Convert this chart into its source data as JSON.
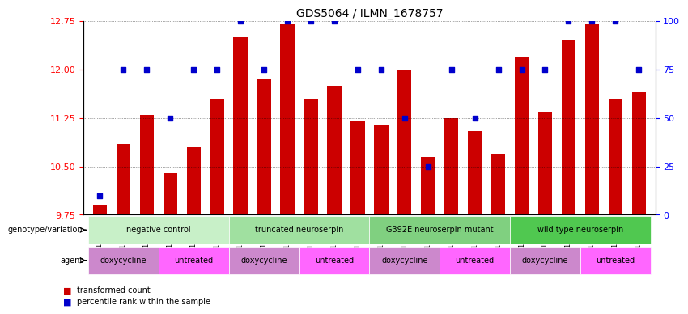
{
  "title": "GDS5064 / ILMN_1678757",
  "samples": [
    "GSM1126821",
    "GSM1126823",
    "GSM1126825",
    "GSM1126822",
    "GSM1126824",
    "GSM1126826",
    "GSM1126827",
    "GSM1126829",
    "GSM1126831",
    "GSM1126828",
    "GSM1126830",
    "GSM1126832",
    "GSM1126834",
    "GSM1126836",
    "GSM1126838",
    "GSM1126833",
    "GSM1126835",
    "GSM1126837",
    "GSM1126840",
    "GSM1126842",
    "GSM1126844",
    "GSM1126839",
    "GSM1126841",
    "GSM1126843"
  ],
  "bar_values": [
    9.9,
    10.85,
    11.3,
    10.4,
    10.8,
    11.55,
    12.5,
    11.85,
    12.7,
    11.55,
    11.75,
    11.2,
    11.15,
    12.0,
    10.65,
    11.25,
    11.05,
    10.7,
    12.2,
    11.35,
    12.45,
    12.7,
    11.55,
    11.65
  ],
  "percentile_values": [
    10,
    75,
    75,
    50,
    75,
    75,
    100,
    75,
    100,
    100,
    100,
    75,
    75,
    50,
    25,
    75,
    50,
    75,
    75,
    75,
    100,
    100,
    100,
    75
  ],
  "ylim_left": [
    9.75,
    12.75
  ],
  "ylim_right": [
    0,
    100
  ],
  "yticks_left": [
    9.75,
    10.5,
    11.25,
    12.0,
    12.75
  ],
  "yticks_right": [
    0,
    25,
    50,
    75,
    100
  ],
  "bar_color": "#cc0000",
  "dot_color": "#0000cc",
  "genotype_groups": [
    {
      "label": "negative control",
      "start": 0,
      "end": 6,
      "color": "#aaffaa"
    },
    {
      "label": "truncated neuroserpin",
      "start": 6,
      "end": 12,
      "color": "#88ee88"
    },
    {
      "label": "G392E neuroserpin mutant",
      "start": 12,
      "end": 18,
      "color": "#66dd66"
    },
    {
      "label": "wild type neuroserpin",
      "start": 18,
      "end": 24,
      "color": "#44ee44"
    }
  ],
  "agent_groups": [
    {
      "label": "doxycycline",
      "start": 0,
      "end": 3,
      "color": "#dd88dd"
    },
    {
      "label": "untreated",
      "start": 3,
      "end": 6,
      "color": "#ff44ff"
    },
    {
      "label": "doxycycline",
      "start": 6,
      "end": 9,
      "color": "#dd88dd"
    },
    {
      "label": "untreated",
      "start": 9,
      "end": 12,
      "color": "#ff44ff"
    },
    {
      "label": "doxycycline",
      "start": 12,
      "end": 15,
      "color": "#dd88dd"
    },
    {
      "label": "untreated",
      "start": 15,
      "end": 18,
      "color": "#ff44ff"
    },
    {
      "label": "doxycycline",
      "start": 18,
      "end": 21,
      "color": "#dd88dd"
    },
    {
      "label": "untreated",
      "start": 21,
      "end": 24,
      "color": "#ff44ff"
    }
  ],
  "legend_items": [
    {
      "label": "transformed count",
      "color": "#cc0000",
      "marker": "s"
    },
    {
      "label": "percentile rank within the sample",
      "color": "#0000cc",
      "marker": "s"
    }
  ]
}
